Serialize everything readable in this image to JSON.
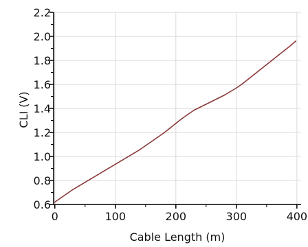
{
  "chart_data": {
    "type": "line",
    "xlabel": "Cable Length (m)",
    "ylabel": "CLI (V)",
    "xlim": [
      -2,
      407
    ],
    "ylim": [
      0.6,
      2.2
    ],
    "xticks": [
      0,
      100,
      200,
      300,
      400
    ],
    "xtick_labels": [
      "0",
      "100",
      "200",
      "300",
      "400"
    ],
    "yticks": [
      0.6,
      0.8,
      1.0,
      1.2,
      1.4,
      1.6,
      1.8,
      2.0,
      2.2
    ],
    "ytick_labels": [
      "0.6",
      "0.8",
      "1.0",
      "1.2",
      "1.4",
      "1.6",
      "1.8",
      "2.0",
      "2.2"
    ],
    "grid": true,
    "legend": false,
    "series": [
      {
        "color": "#8b3a3a",
        "x": [
          0,
          10,
          20,
          30,
          40,
          50,
          60,
          70,
          80,
          90,
          100,
          110,
          120,
          130,
          140,
          150,
          160,
          170,
          180,
          190,
          200,
          210,
          220,
          230,
          240,
          250,
          260,
          270,
          280,
          290,
          300,
          310,
          320,
          330,
          340,
          350,
          360,
          370,
          380,
          390,
          398
        ],
        "y": [
          0.62,
          0.655,
          0.69,
          0.725,
          0.755,
          0.785,
          0.815,
          0.845,
          0.875,
          0.905,
          0.935,
          0.965,
          0.995,
          1.025,
          1.055,
          1.09,
          1.125,
          1.16,
          1.195,
          1.235,
          1.275,
          1.315,
          1.35,
          1.385,
          1.41,
          1.435,
          1.46,
          1.485,
          1.51,
          1.54,
          1.57,
          1.605,
          1.645,
          1.685,
          1.725,
          1.765,
          1.805,
          1.845,
          1.885,
          1.925,
          1.96
        ]
      }
    ]
  }
}
